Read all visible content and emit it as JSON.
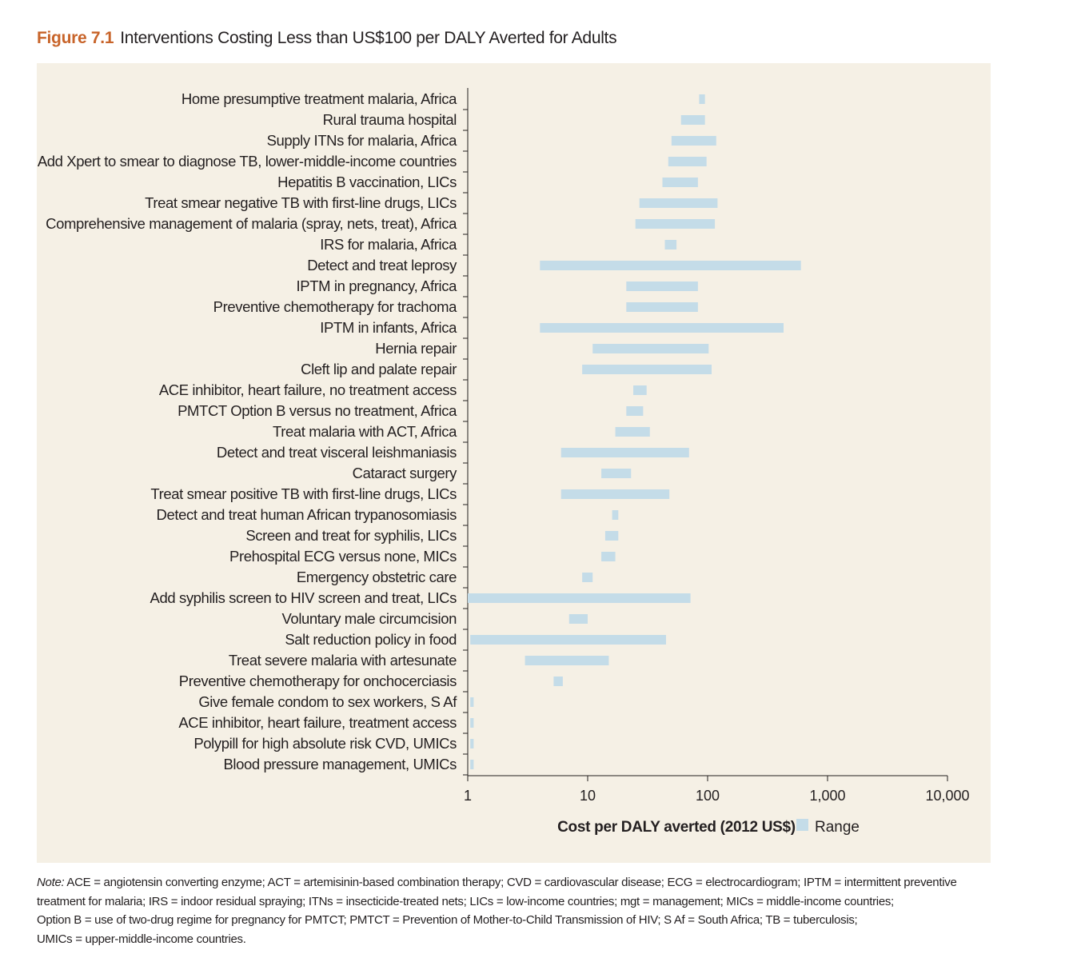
{
  "figure": {
    "number": "Figure 7.1",
    "title": "Interventions Costing Less than US$100 per DALY Averted for Adults"
  },
  "note": {
    "label": "Note:",
    "lines": [
      "ACE = angiotensin converting enzyme; ACT = artemisinin-based combination therapy; CVD = cardiovascular disease; ECG = electrocardiogram; IPTM = intermittent preventive",
      "treatment for malaria; IRS = indoor residual spraying; ITNs = insecticide-treated nets; LICs = low-income countries; mgt = management; MICs = middle-income countries;",
      "Option B = use of two-drug regime for pregnancy for PMTCT; PMTCT = Prevention of Mother-to-Child Transmission of HIV; S Af = South Africa; TB = tuberculosis;",
      "UMICs = upper-middle-income countries."
    ]
  },
  "chart_data": {
    "type": "bar",
    "orientation": "horizontal-range",
    "xlabel": "Cost per DALY averted (2012 US$)",
    "legend": [
      {
        "label": "Range",
        "color": "#c4dce8"
      }
    ],
    "legend_position": "bottom",
    "x_scale": "log",
    "xlim": [
      1,
      10000
    ],
    "xticks": [
      1,
      10,
      100,
      1000,
      10000
    ],
    "xtick_labels": [
      "1",
      "10",
      "100",
      "1,000",
      "10,000"
    ],
    "grid": false,
    "bar_color": "#c4dce8",
    "categories": [
      "Home presumptive treatment malaria, Africa",
      "Rural trauma hospital",
      "Supply ITNs for malaria, Africa",
      "Add Xpert to smear to diagnose TB, lower-middle-income countries",
      "Hepatitis B vaccination, LICs",
      "Treat smear negative TB with first-line drugs, LICs",
      "Comprehensive management of malaria (spray, nets, treat), Africa",
      "IRS for malaria, Africa",
      "Detect and treat leprosy",
      "IPTM in pregnancy, Africa",
      "Preventive chemotherapy for trachoma",
      "IPTM in infants, Africa",
      "Hernia repair",
      "Cleft lip and palate repair",
      "ACE inhibitor, heart failure, no treatment access",
      "PMTCT Option B versus no treatment, Africa",
      "Treat malaria with ACT, Africa",
      "Detect and treat visceral leishmaniasis",
      "Cataract surgery",
      "Treat smear positive TB with first-line drugs, LICs",
      "Detect and treat human African trypanosomiasis",
      "Screen and treat for syphilis, LICs",
      "Prehospital ECG versus none, MICs",
      "Emergency obstetric care",
      "Add syphilis screen to HIV screen and treat, LICs",
      "Voluntary male circumcision",
      "Salt reduction policy in food",
      "Treat severe malaria with artesunate",
      "Preventive chemotherapy for onchocerciasis",
      "Give female condom to sex workers, S Af",
      "ACE inhibitor, heart failure, treatment access",
      "Polypill for high absolute risk CVD, UMICs",
      "Blood pressure management, UMICs"
    ],
    "ranges": [
      [
        85,
        95
      ],
      [
        60,
        95
      ],
      [
        50,
        118
      ],
      [
        47,
        98
      ],
      [
        42,
        83
      ],
      [
        27,
        121
      ],
      [
        25,
        115
      ],
      [
        44,
        55
      ],
      [
        4,
        600
      ],
      [
        21,
        83
      ],
      [
        21,
        83
      ],
      [
        4,
        430
      ],
      [
        11,
        102
      ],
      [
        9,
        108
      ],
      [
        24,
        31
      ],
      [
        21,
        29
      ],
      [
        17,
        33
      ],
      [
        6,
        70
      ],
      [
        13,
        23
      ],
      [
        6,
        48
      ],
      [
        16,
        18
      ],
      [
        14,
        18
      ],
      [
        13,
        17
      ],
      [
        9,
        11
      ],
      [
        1,
        72
      ],
      [
        7,
        10
      ],
      [
        1.05,
        45
      ],
      [
        3,
        15
      ],
      [
        5.2,
        6.2
      ],
      [
        1.05,
        1.12
      ],
      [
        1.05,
        1.12
      ],
      [
        1.05,
        1.12
      ],
      [
        1.05,
        1.12
      ]
    ]
  }
}
